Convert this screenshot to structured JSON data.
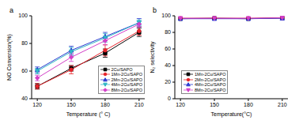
{
  "chart_data": [
    {
      "type": "line",
      "title": "a",
      "x_label": "Temperature (° C)",
      "y_label": "NO Conversion(%)",
      "x": [
        120,
        150,
        180,
        210
      ],
      "xlim": [
        115,
        215
      ],
      "xticks": [
        120,
        150,
        180,
        210
      ],
      "ylim": [
        40,
        100
      ],
      "yticks": [
        40,
        60,
        80,
        100
      ],
      "legend": "lower right",
      "series": [
        {
          "name": "2Cu/SAPO",
          "color": "#000000",
          "marker": "square",
          "values": [
            49,
            62,
            73,
            88
          ],
          "errors": [
            2,
            2,
            3,
            3
          ]
        },
        {
          "name": "1Mn-2Cu/SAPO",
          "color": "#e8232a",
          "marker": "circle",
          "values": [
            49,
            61,
            75,
            89
          ],
          "errors": [
            2,
            3,
            4,
            3
          ]
        },
        {
          "name": "2Mn-2Cu/SAPO",
          "color": "#2b3bd1",
          "marker": "triangle-up",
          "values": [
            61,
            75,
            85,
            95
          ],
          "errors": [
            2,
            3,
            3,
            3
          ]
        },
        {
          "name": "4Mn-2Cu/SAPO",
          "color": "#2fb5c5",
          "marker": "triangle-down",
          "values": [
            60,
            74,
            84,
            95
          ],
          "errors": [
            2,
            3,
            3,
            2
          ]
        },
        {
          "name": "8Mn-2Cu/SAPO",
          "color": "#d33fc8",
          "marker": "diamond",
          "values": [
            55,
            70,
            82,
            94
          ],
          "errors": [
            2,
            3,
            3,
            2
          ]
        }
      ]
    },
    {
      "type": "line",
      "title": "b",
      "x_label": "Temperature(°C)",
      "y_label": "N₂ selectivity",
      "x": [
        120,
        150,
        180,
        210
      ],
      "xlim": [
        115,
        215
      ],
      "xticks": [
        120,
        150,
        180,
        210
      ],
      "ylim": [
        0,
        100
      ],
      "yticks": [
        0,
        20,
        40,
        60,
        80,
        100
      ],
      "legend": "lower left",
      "series": [
        {
          "name": "1Mn-2Cu/SAPO",
          "color": "#000000",
          "marker": "square",
          "values": [
            96.5,
            97,
            96.5,
            97.5
          ]
        },
        {
          "name": "2Mn-2Cu/SAPO",
          "color": "#e8232a",
          "marker": "circle",
          "values": [
            97,
            97,
            97,
            97.5
          ]
        },
        {
          "name": "4Mn-2Cu/SAPO",
          "color": "#2b3bd1",
          "marker": "triangle-up",
          "values": [
            96.5,
            96.5,
            96.5,
            97
          ]
        },
        {
          "name": "8Mn-2Cu/SAPO",
          "color": "#d33fc8",
          "marker": "triangle-down",
          "values": [
            97,
            97,
            97,
            97.5
          ]
        }
      ]
    }
  ]
}
